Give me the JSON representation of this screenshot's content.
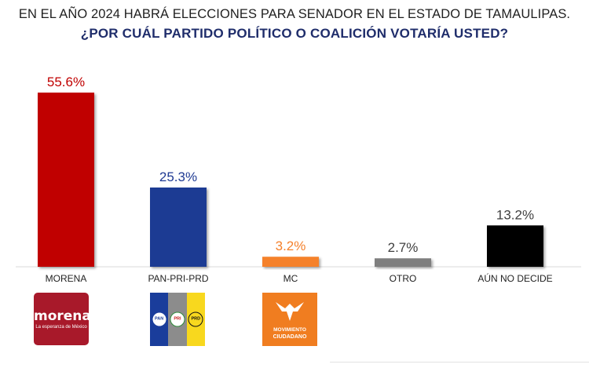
{
  "chart_data": {
    "type": "bar",
    "title": "EN EL AÑO 2024 HABRÁ ELECCIONES PARA SENADOR EN EL ESTADO DE TAMAULIPAS.",
    "subtitle": "¿POR CUÁL PARTIDO POLÍTICO O COALICIÓN  VOTARÍA USTED?",
    "categories": [
      "MORENA",
      "PAN-PRI-PRD",
      "MC",
      "OTRO",
      "AÚN NO DECIDE"
    ],
    "values": [
      55.6,
      25.3,
      3.2,
      2.7,
      13.2
    ],
    "value_labels": [
      "55.6%",
      "25.3%",
      "3.2%",
      "2.7%",
      "13.2%"
    ],
    "colors": [
      "#c00000",
      "#1f3a93",
      "#f5812c",
      "#7f7f7f",
      "#000000"
    ],
    "label_colors": [
      "#c00000",
      "#1f3a93",
      "#f5812c",
      "#404040",
      "#404040"
    ],
    "ylim": [
      0,
      60
    ],
    "grid": false,
    "legend": "none"
  },
  "logos": {
    "morena": {
      "name": "morena",
      "tagline": "La esperanza de México"
    },
    "coalition": {
      "pan": "PAN",
      "pri": "PRI",
      "prd": "PRD"
    },
    "mc": {
      "line1": "MOVIMIENTO",
      "line2": "CIUDADANO"
    }
  }
}
